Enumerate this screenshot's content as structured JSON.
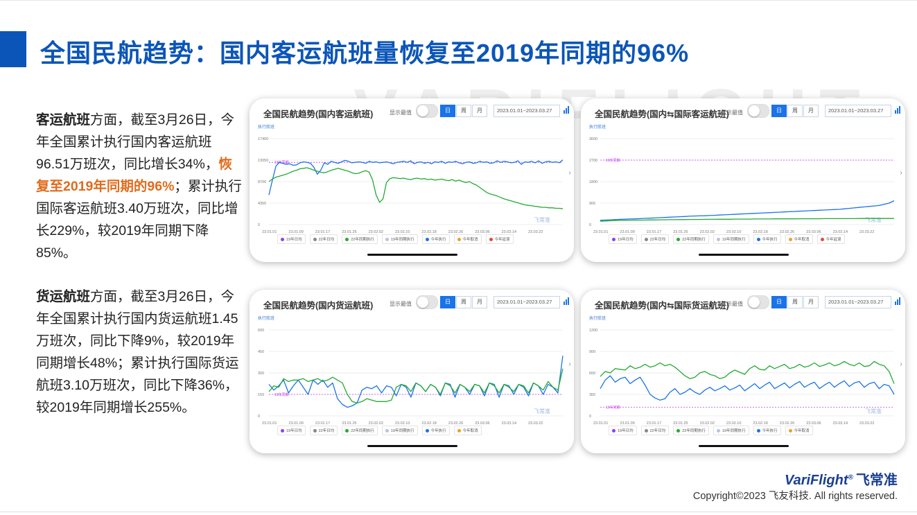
{
  "title": "全国民航趋势：国内客运航班量恢复至2019年同期的96%",
  "watermark": "VARIFLIGHT",
  "para1": {
    "lead": "客运航班",
    "text1": "方面，截至3月26日，今年全国累计执行国内客运航班96.51万班次，同比增长34%，",
    "highlight": "恢复至2019年同期的96%",
    "text2": "；累计执行国际客运航班3.40万班次，同比增长229%，较2019年同期下降85%。"
  },
  "para2": {
    "lead": "货运航班",
    "text1": "方面，截至3月26日，今年全国累计执行国内货运航班1.45万班次，同比下降9%，较2019年同期增长48%；累计执行国际货运航班3.10万班次，同比下降36%，较2019年同期增长255%。"
  },
  "common": {
    "toggle_label": "显示最值",
    "seg": [
      "日",
      "周",
      "月"
    ],
    "date_range": "2023.01.01~2023.03.27",
    "unit_label": "执行航班",
    "ref_label": "19年同期",
    "chart_watermark": "飞常准",
    "arrow": "›"
  },
  "colors": {
    "accent": "#0b55b8",
    "highlight": "#e06b1c",
    "series_2019": "#8a3ffc",
    "series_2022_plan": "#888888",
    "series_2022_exec": "#22aa33",
    "series_2019_exec": "#b8c4dd",
    "series_2023_exec": "#1a73e8",
    "series_2023_cancel": "#f0a020",
    "series_2023_delay": "#e8453c"
  },
  "chart_data": [
    {
      "type": "line",
      "title": "全国民航趋势(国内客运航班)",
      "y_ticks": [
        "17400",
        "13050",
        "8700",
        "4350",
        "0"
      ],
      "ylim": [
        0,
        17400
      ],
      "x_ticks": [
        "23.01.01",
        "23.01.09",
        "23.01.17",
        "23.01.25",
        "23.02.02",
        "23.02.10",
        "23.02.18",
        "23.02.26",
        "23.03.06",
        "23.03.14",
        "23.03.22"
      ],
      "ref_value": 12600,
      "legend": [
        "19年日均",
        "22年日均",
        "22年同期执行",
        "19年同期执行",
        "今年执行",
        "今年取消",
        "今年延误"
      ],
      "series": [
        {
          "name": "今年执行",
          "color_key": "series_2023_exec",
          "values": [
            6000,
            9000,
            11800,
            12600,
            12400,
            12200,
            12300,
            12000,
            12100,
            12500,
            12700,
            12600,
            12400,
            11600,
            10200,
            11000,
            12500,
            12200,
            12800,
            12600,
            12400,
            12700,
            13000,
            12800,
            12500,
            12600,
            12700,
            12600,
            12400,
            12800,
            12600,
            12700,
            12500,
            12600,
            12700,
            12500,
            12300,
            12600,
            12700,
            12800,
            12600,
            12900,
            12300,
            12600,
            12700,
            12400,
            12600,
            12300,
            12700,
            12600,
            12800,
            12400,
            12700,
            12600,
            12800,
            12500,
            12300,
            12600,
            12700,
            12400,
            12500,
            12800,
            12600,
            12700,
            12400,
            12500,
            12900,
            12600,
            12800,
            12700,
            12500,
            12600,
            12900,
            12200,
            12700,
            12600,
            12800,
            12500,
            12900,
            12400,
            12700,
            12800,
            12600,
            12700,
            12500,
            13100
          ]
        },
        {
          "name": "22年同期执行",
          "color_key": "series_2022_exec",
          "values": [
            8700,
            9200,
            9600,
            9800,
            10000,
            10200,
            10500,
            10800,
            11000,
            11300,
            11400,
            11500,
            11300,
            11000,
            10800,
            10600,
            10500,
            10700,
            11000,
            11200,
            11400,
            11200,
            11000,
            10800,
            10500,
            10300,
            10400,
            10700,
            10900,
            10600,
            9000,
            6000,
            4500,
            5200,
            8500,
            9300,
            9500,
            9400,
            9300,
            9400,
            9200,
            9100,
            9300,
            9400,
            9200,
            9300,
            9100,
            9200,
            9000,
            9100,
            9200,
            9000,
            8900,
            9100,
            8800,
            9000,
            8700,
            8500,
            8700,
            8300,
            8000,
            7500,
            7000,
            6500,
            6200,
            6000,
            5800,
            5500,
            5200,
            5000,
            4800,
            4600,
            4400,
            4200,
            4000,
            3900,
            3800,
            3700,
            3600,
            3500,
            3500,
            3400,
            3400,
            3300,
            3300,
            3200
          ]
        }
      ]
    },
    {
      "type": "line",
      "title": "全国民航趋势(国内⇆国际客运航班)",
      "y_ticks": [
        "3600",
        "2700",
        "1800",
        "900",
        "0"
      ],
      "ylim": [
        0,
        3600
      ],
      "x_ticks": [
        "23.01.01",
        "23.01.09",
        "23.01.17",
        "23.01.25",
        "23.02.02",
        "23.02.10",
        "23.02.18",
        "23.02.26",
        "23.03.06",
        "23.03.14",
        "23.03.22"
      ],
      "ref_value": 2700,
      "legend": [
        "19年日均",
        "22年日均",
        "22年同期执行",
        "19年同期执行",
        "今年执行",
        "今年取消",
        "今年延误"
      ],
      "series": [
        {
          "name": "今年执行",
          "color_key": "series_2023_exec",
          "values": [
            180,
            190,
            200,
            210,
            220,
            230,
            235,
            240,
            250,
            260,
            270,
            280,
            290,
            300,
            310,
            320,
            330,
            340,
            350,
            360,
            365,
            370,
            380,
            390,
            400,
            410,
            420,
            430,
            440,
            450,
            460,
            470,
            480,
            490,
            500,
            510,
            520,
            530,
            540,
            550,
            560,
            570,
            580,
            590,
            600,
            610,
            620,
            630,
            640,
            660,
            680,
            700,
            720,
            740,
            760,
            780,
            800,
            850,
            900,
            1000
          ]
        },
        {
          "name": "22年同期执行",
          "color_key": "series_2022_exec",
          "values": [
            140,
            150,
            160,
            170,
            180,
            180,
            185,
            185,
            190,
            190,
            195,
            195,
            200,
            200,
            205,
            205,
            210,
            210,
            215,
            215,
            215,
            220,
            220,
            220,
            225,
            225,
            225,
            230,
            230,
            230,
            230,
            235,
            235,
            235,
            235,
            240,
            240,
            240,
            240,
            240,
            245,
            245,
            245,
            245,
            245,
            250,
            250,
            250,
            250,
            250,
            250,
            250,
            255,
            255,
            255,
            255,
            255,
            255,
            255,
            255
          ]
        }
      ]
    },
    {
      "type": "line",
      "title": "全国民航趋势(国内货运航班)",
      "y_ticks": [
        "600",
        "450",
        "300",
        "150",
        "0"
      ],
      "ylim": [
        0,
        600
      ],
      "x_ticks": [
        "23.01.01",
        "23.01.09",
        "23.01.17",
        "23.01.25",
        "23.02.02",
        "23.02.10",
        "23.02.18",
        "23.02.26",
        "23.03.06",
        "23.03.14",
        "23.03.22"
      ],
      "ref_value": 150,
      "legend": [
        "19年日均",
        "22年日均",
        "22年同期执行",
        "19年同期执行",
        "今年执行",
        "今年取消"
      ],
      "series": [
        {
          "name": "今年执行",
          "color_key": "series_2023_exec",
          "values": [
            220,
            180,
            210,
            250,
            160,
            210,
            250,
            200,
            150,
            250,
            220,
            250,
            200,
            230,
            120,
            80,
            60,
            70,
            90,
            180,
            200,
            190,
            210,
            160,
            210,
            200,
            140,
            220,
            200,
            130,
            230,
            210,
            170,
            220,
            200,
            140,
            230,
            220,
            130,
            220,
            200,
            150,
            220,
            210,
            140,
            230,
            220,
            130,
            220,
            210,
            150,
            220,
            200,
            140,
            230,
            210,
            150,
            220,
            200,
            160,
            420
          ]
        },
        {
          "name": "22年同期执行",
          "color_key": "series_2022_exec",
          "values": [
            170,
            210,
            200,
            260,
            240,
            250,
            250,
            260,
            240,
            250,
            260,
            240,
            250,
            270,
            250,
            230,
            150,
            100,
            90,
            100,
            120,
            110,
            100,
            100,
            100,
            110,
            200,
            220,
            210,
            170,
            230,
            210,
            170,
            220,
            200,
            150,
            230,
            210,
            160,
            220,
            200,
            170,
            220,
            210,
            160,
            230,
            210,
            160,
            220,
            200,
            170,
            220,
            210,
            160,
            230,
            210,
            180,
            240,
            200,
            180,
            330
          ]
        }
      ]
    },
    {
      "type": "line",
      "title": "全国民航趋势(国内⇆国际货运航班)",
      "y_ticks": [
        "1200",
        "900",
        "600",
        "300",
        "0"
      ],
      "ylim": [
        0,
        1200
      ],
      "x_ticks": [
        "23.01.01",
        "23.01.09",
        "23.01.17",
        "23.01.25",
        "23.02.02",
        "23.02.10",
        "23.02.18",
        "23.02.26",
        "23.03.06",
        "23.03.14",
        "23.03.22"
      ],
      "ref_value": 120,
      "legend": [
        "19年日均",
        "22年日均",
        "22年同期执行",
        "19年同期执行",
        "今年执行",
        "今年取消"
      ],
      "series": [
        {
          "name": "今年执行",
          "color_key": "series_2023_exec",
          "values": [
            380,
            500,
            560,
            470,
            520,
            540,
            450,
            500,
            540,
            430,
            300,
            250,
            220,
            240,
            330,
            380,
            300,
            330,
            380,
            330,
            300,
            360,
            400,
            350,
            380,
            420,
            360,
            390,
            430,
            350,
            400,
            450,
            380,
            430,
            470,
            380,
            420,
            460,
            390,
            440,
            480,
            400,
            440,
            470,
            380,
            430,
            470,
            400,
            450,
            490,
            410,
            460,
            480,
            400,
            450,
            470,
            380,
            440,
            420,
            300
          ]
        },
        {
          "name": "22年同期执行",
          "color_key": "series_2022_exec",
          "values": [
            550,
            620,
            600,
            660,
            650,
            640,
            700,
            660,
            680,
            720,
            680,
            700,
            740,
            700,
            720,
            680,
            620,
            560,
            520,
            540,
            600,
            620,
            580,
            560,
            520,
            540,
            600,
            640,
            610,
            580,
            660,
            700,
            650,
            640,
            700,
            660,
            690,
            720,
            660,
            680,
            720,
            680,
            700,
            740,
            690,
            710,
            740,
            700,
            720,
            760,
            720,
            700,
            740,
            690,
            700,
            760,
            720,
            700,
            620,
            450
          ]
        }
      ]
    }
  ],
  "footer": {
    "brand": "VariFlight",
    "brand_mark": "®",
    "brand_cn": "飞常准",
    "copyright": "Copyright©2023 飞友科技. All rights reserved."
  }
}
